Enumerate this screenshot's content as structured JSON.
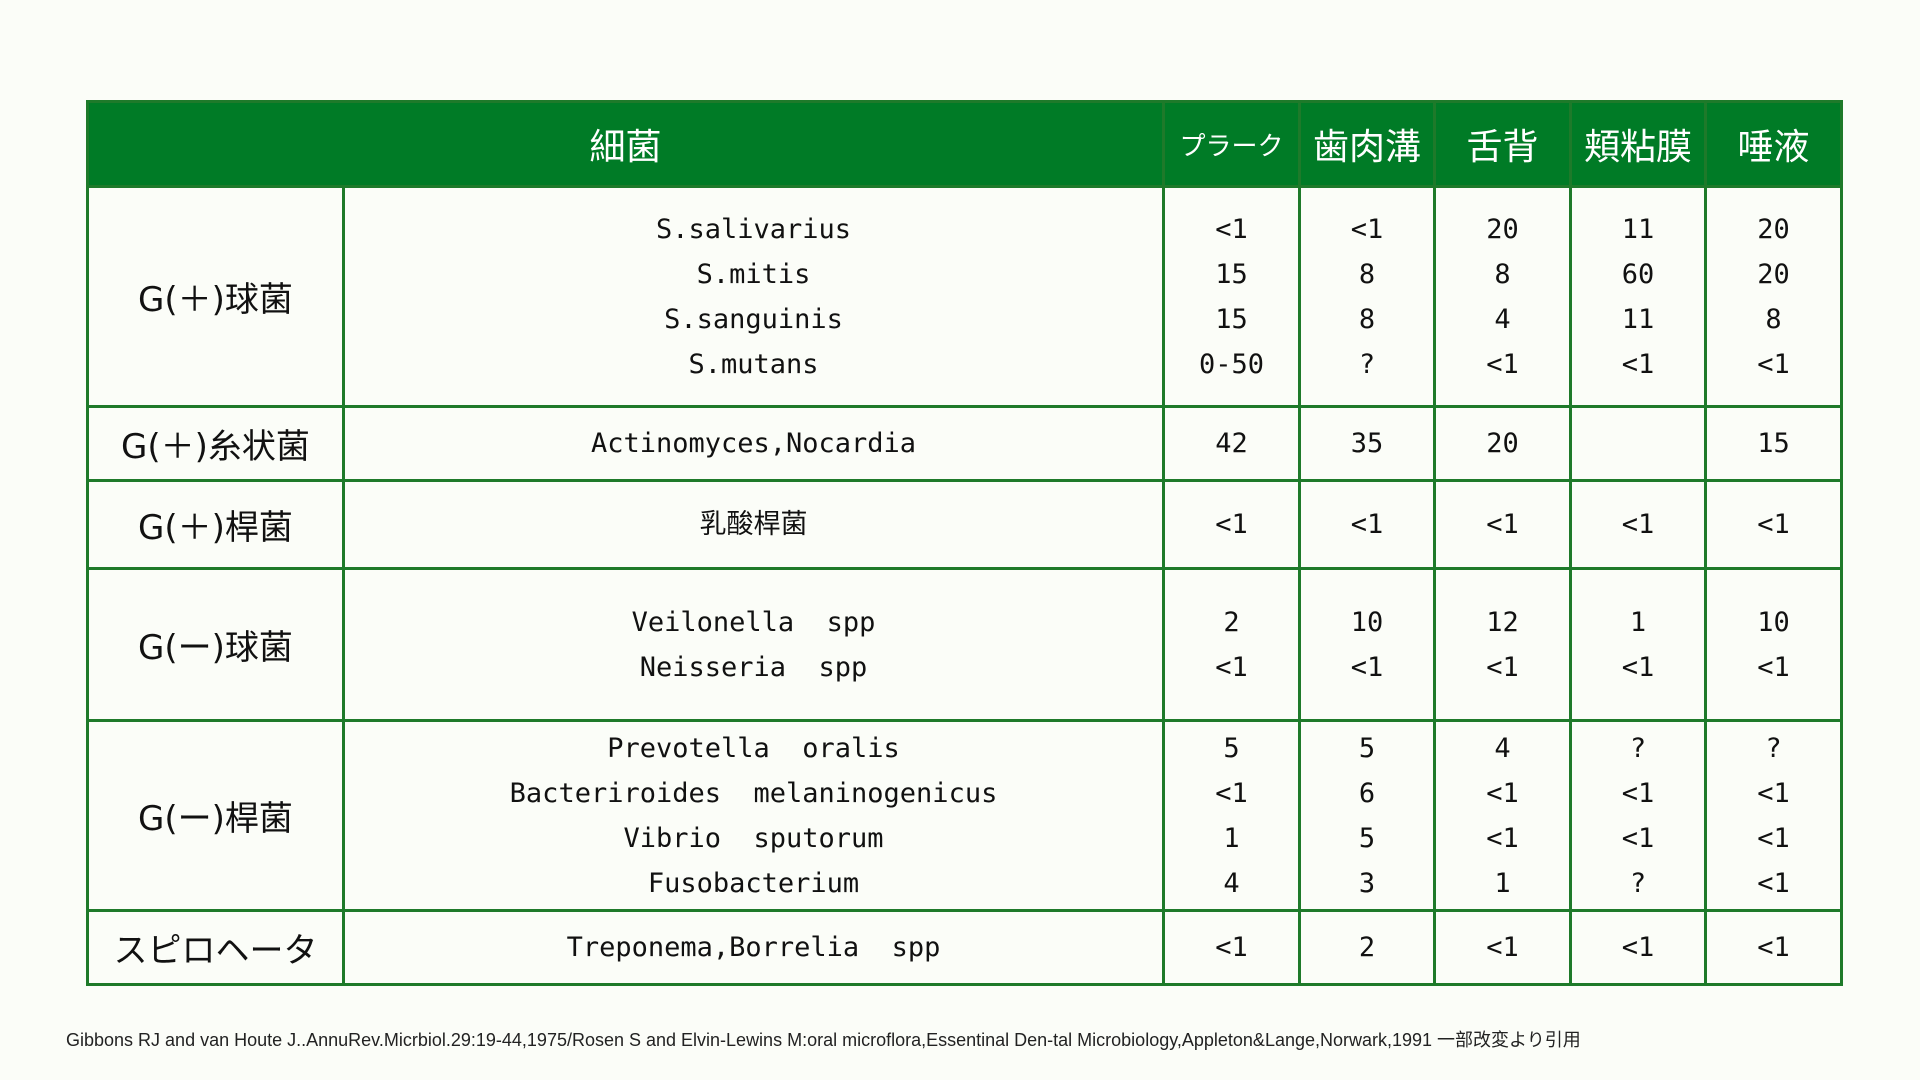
{
  "header": {
    "bacteria": "細菌",
    "plaque": "プラーク",
    "gingival_sulcus": "歯肉溝",
    "tongue_dorsum": "舌背",
    "buccal_mucosa": "頬粘膜",
    "saliva": "唾液"
  },
  "groups": [
    {
      "category": "G(＋)球菌",
      "species": [
        "S.salivarius",
        "S.mitis",
        "S.sanguinis",
        "S.mutans"
      ],
      "plaque": [
        "<1",
        "15",
        "15",
        "0-50"
      ],
      "gingival_sulcus": [
        "<1",
        "8",
        "8",
        "?"
      ],
      "tongue_dorsum": [
        "20",
        "8",
        "4",
        "<1"
      ],
      "buccal_mucosa": [
        "11",
        "60",
        "11",
        "<1"
      ],
      "saliva": [
        "20",
        "20",
        "8",
        "<1"
      ]
    },
    {
      "category": "G(＋)糸状菌",
      "species": [
        "Actinomyces,Nocardia"
      ],
      "plaque": [
        "42"
      ],
      "gingival_sulcus": [
        "35"
      ],
      "tongue_dorsum": [
        "20"
      ],
      "buccal_mucosa": [
        ""
      ],
      "saliva": [
        "15"
      ]
    },
    {
      "category": "G(＋)桿菌",
      "species": [
        "乳酸桿菌"
      ],
      "plaque": [
        "<1"
      ],
      "gingival_sulcus": [
        "<1"
      ],
      "tongue_dorsum": [
        "<1"
      ],
      "buccal_mucosa": [
        "<1"
      ],
      "saliva": [
        "<1"
      ]
    },
    {
      "category": "G(ー)球菌",
      "species": [
        "Veilonella  spp",
        "Neisseria  spp"
      ],
      "plaque": [
        "2",
        "<1"
      ],
      "gingival_sulcus": [
        "10",
        "<1"
      ],
      "tongue_dorsum": [
        "12",
        "<1"
      ],
      "buccal_mucosa": [
        "1",
        "<1"
      ],
      "saliva": [
        "10",
        "<1"
      ]
    },
    {
      "category": "G(ー)桿菌",
      "species": [
        "Prevotella  oralis",
        "Bacteriroides  melaninogenicus",
        "Vibrio  sputorum",
        "Fusobacterium"
      ],
      "plaque": [
        "5",
        "<1",
        "1",
        "4"
      ],
      "gingival_sulcus": [
        "5",
        "6",
        "5",
        "3"
      ],
      "tongue_dorsum": [
        "4",
        "<1",
        "<1",
        "1"
      ],
      "buccal_mucosa": [
        "?",
        "<1",
        "<1",
        "?"
      ],
      "saliva": [
        "?",
        "<1",
        "<1",
        "<1"
      ]
    },
    {
      "category": "スピロヘータ",
      "species": [
        "Treponema,Borrelia  spp"
      ],
      "plaque": [
        "<1"
      ],
      "gingival_sulcus": [
        "2"
      ],
      "tongue_dorsum": [
        "<1"
      ],
      "buccal_mucosa": [
        "<1"
      ],
      "saliva": [
        "<1"
      ]
    }
  ],
  "citation": "Gibbons RJ and van Houte J..AnnuRev.Micrbiol.29:19-44,1975/Rosen S and Elvin-Lewins M:oral microflora,Essentinal Den-tal Microbiology,Appleton&Lange,Norwark,1991 一部改変より引用",
  "colors": {
    "header_bg": "#007b26",
    "border": "#1e7a2a",
    "background": "#fbfdf8"
  }
}
